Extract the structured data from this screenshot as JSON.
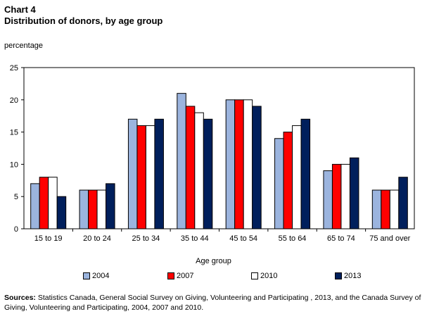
{
  "chart_number": "Chart 4",
  "chart_data": {
    "type": "bar",
    "title": "Distribution of donors, by age group",
    "ylabel": "percentage",
    "xlabel": "Age group",
    "ylim": [
      0,
      25
    ],
    "yticks": [
      0,
      5,
      10,
      15,
      20,
      25
    ],
    "grid": false,
    "legend_position": "bottom",
    "categories": [
      "15 to 19",
      "20 to 24",
      "25 to 34",
      "35 to 44",
      "45 to 54",
      "55 to 64",
      "65 to 74",
      "75 and over"
    ],
    "series": [
      {
        "name": "2004",
        "color": "#9bb4de",
        "values": [
          7,
          6,
          17,
          21,
          20,
          14,
          9,
          6
        ]
      },
      {
        "name": "2007",
        "color": "#ff0000",
        "values": [
          8,
          6,
          16,
          19,
          20,
          15,
          10,
          6
        ]
      },
      {
        "name": "2010",
        "color": "#ffffff",
        "values": [
          8,
          6,
          16,
          18,
          20,
          16,
          10,
          6
        ]
      },
      {
        "name": "2013",
        "color": "#001f5c",
        "values": [
          5,
          7,
          17,
          17,
          19,
          17,
          11,
          8
        ]
      }
    ]
  },
  "sources": {
    "label": "Sources:",
    "text": " Statistics Canada, General Social Survey on Giving, Volunteering and Participating , 2013, and the Canada Survey of Giving, Volunteering and Participating, 2004, 2007  and 2010."
  }
}
